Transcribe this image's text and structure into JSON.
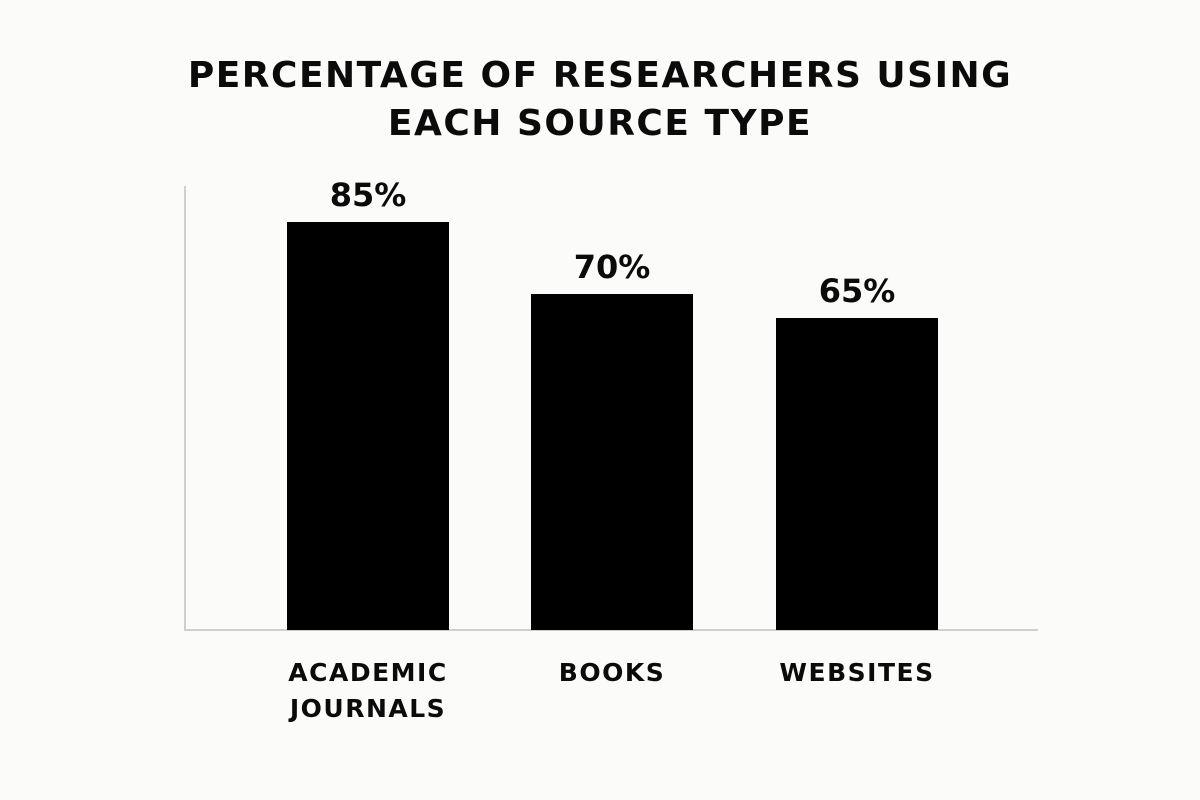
{
  "chart_data": {
    "type": "bar",
    "title_lines": [
      "PERCENTAGE OF RESEARCHERS USING",
      "EACH SOURCE TYPE"
    ],
    "categories": [
      [
        "ACADEMIC",
        "JOURNALS"
      ],
      [
        "BOOKS"
      ],
      [
        "WEBSITES"
      ]
    ],
    "values": [
      85,
      70,
      65
    ],
    "value_labels": [
      "85%",
      "70%",
      "65%"
    ],
    "xlabel": "",
    "ylabel": "",
    "ylim": [
      0,
      100
    ],
    "grid": false,
    "legend": "none",
    "bar_color": "#000000"
  }
}
